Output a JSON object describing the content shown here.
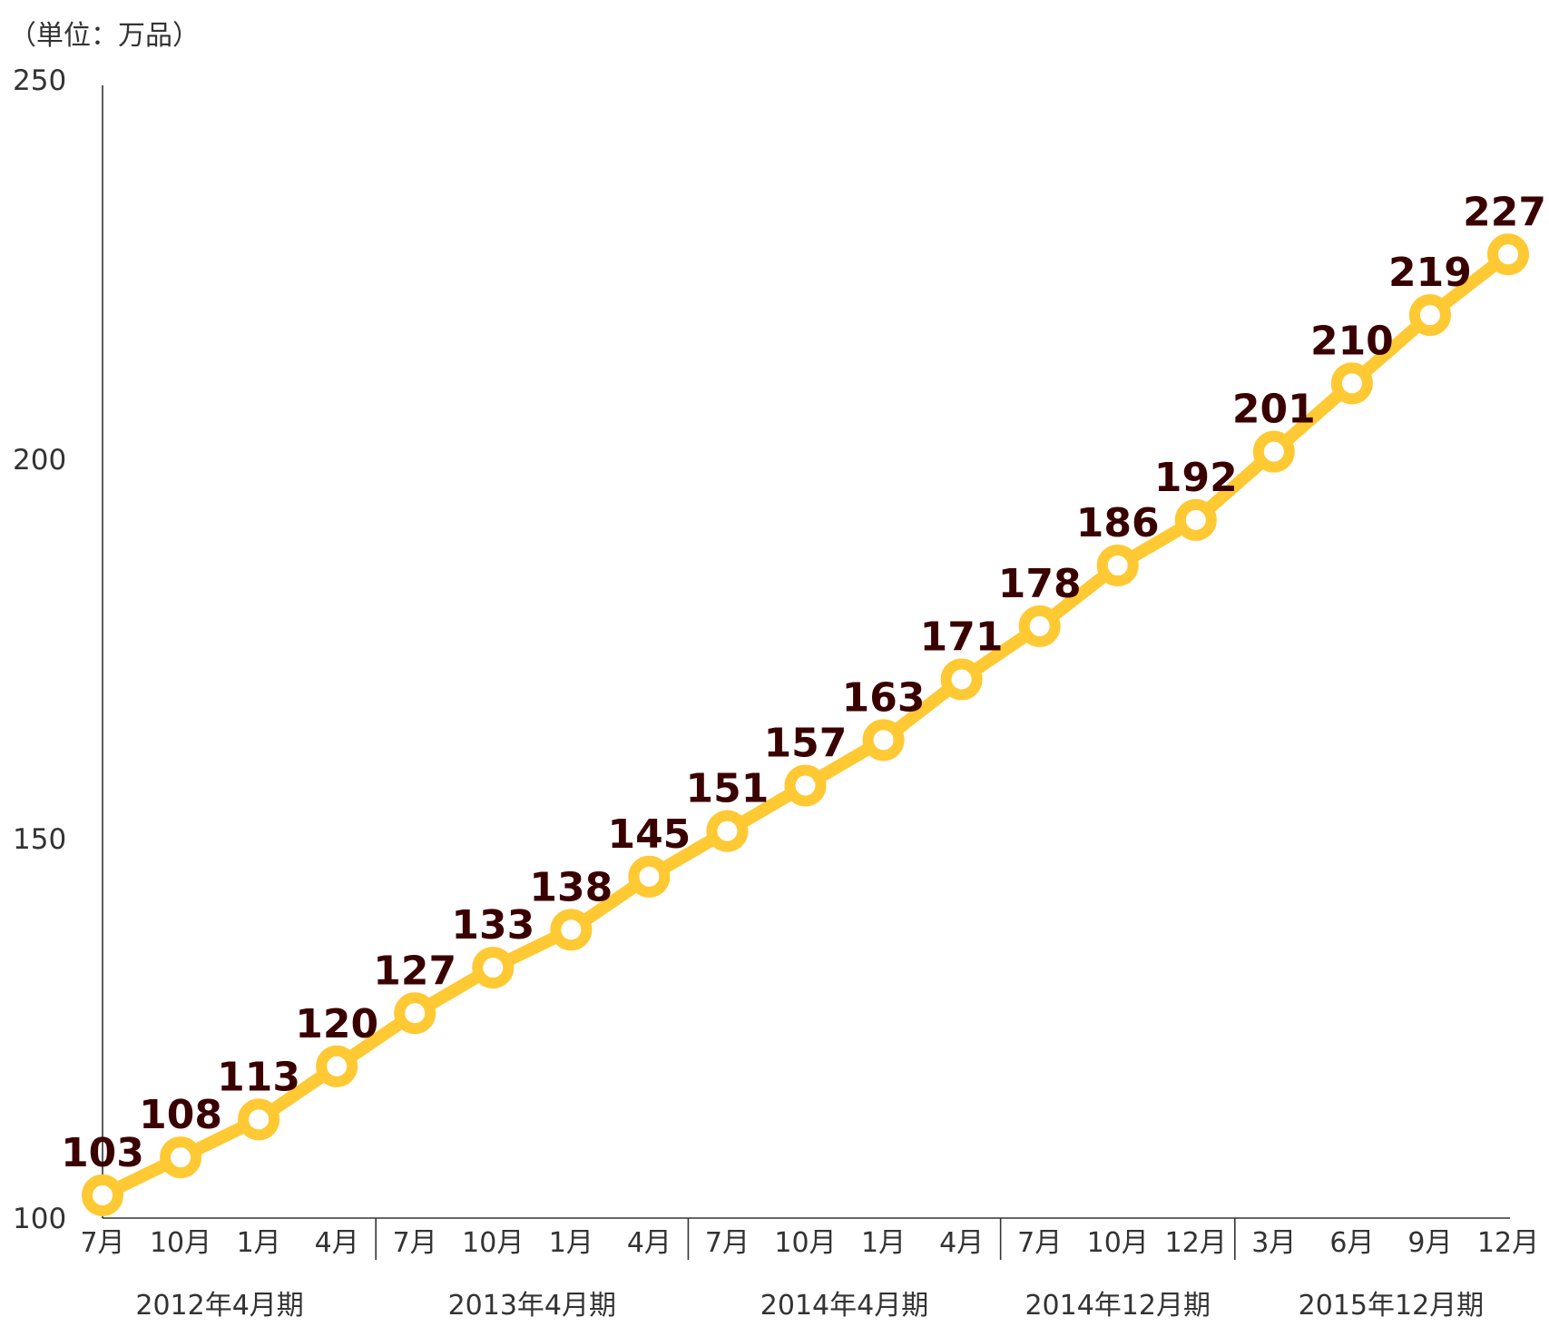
{
  "unit_label": "（単位：万品）",
  "colors": {
    "line": "#FFC933",
    "marker_fill": "#FFFFFF",
    "data_label": "#3A0000",
    "axis": "#333333"
  },
  "chart_data": {
    "type": "line",
    "categories": [
      "7月",
      "10月",
      "1月",
      "4月",
      "7月",
      "10月",
      "1月",
      "4月",
      "7月",
      "10月",
      "1月",
      "4月",
      "7月",
      "10月",
      "12月",
      "3月",
      "6月",
      "9月",
      "12月"
    ],
    "series": [
      {
        "values": [
          103,
          108,
          113,
          120,
          127,
          133,
          138,
          145,
          151,
          157,
          163,
          171,
          178,
          186,
          192,
          201,
          210,
          219,
          227
        ]
      }
    ],
    "periods": [
      {
        "label": "2012年4月期",
        "start": 0,
        "end": 3
      },
      {
        "label": "2013年4月期",
        "start": 4,
        "end": 7
      },
      {
        "label": "2014年4月期",
        "start": 8,
        "end": 11
      },
      {
        "label": "2014年12月期",
        "start": 12,
        "end": 14
      },
      {
        "label": "2015年12月期",
        "start": 15,
        "end": 18
      }
    ],
    "ylim": [
      100,
      250
    ],
    "yticks": [
      100,
      150,
      200,
      250
    ],
    "title": "",
    "xlabel": "",
    "ylabel": "",
    "grid": false,
    "data_labels": true
  }
}
